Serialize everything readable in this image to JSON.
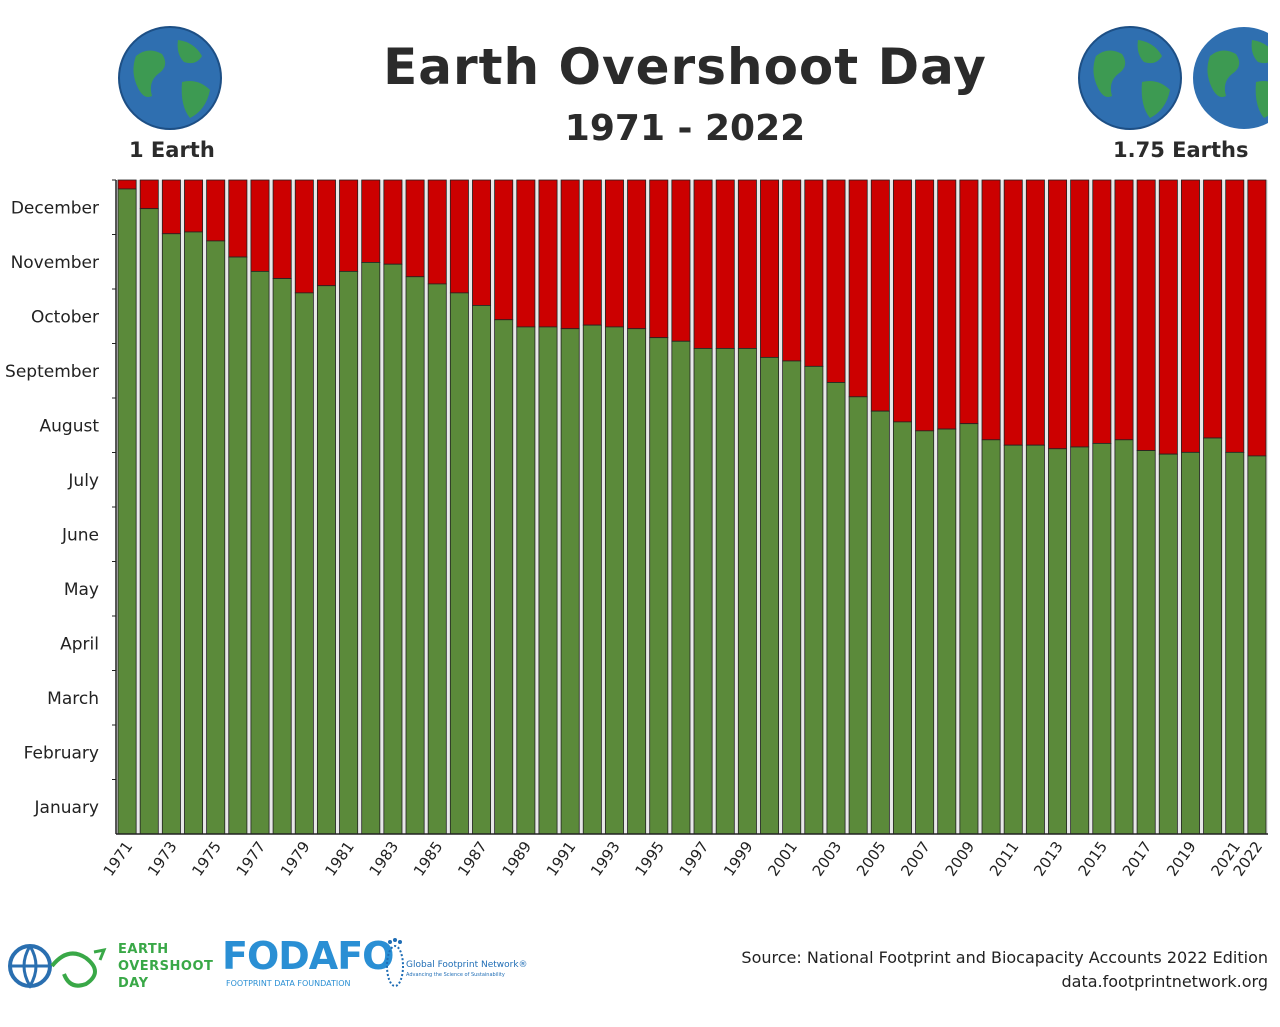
{
  "header": {
    "title": "Earth Overshoot Day",
    "subtitle": "1971 - 2022",
    "left_label": "1 Earth",
    "right_label": "1.75 Earths"
  },
  "footer": {
    "source_line1": "Source: National Footprint and Biocapacity Accounts 2022 Edition",
    "source_line2": "data.footprintnetwork.org",
    "logo_eod_line1": "EARTH",
    "logo_eod_line2": "OVERSHOOT",
    "logo_eod_line3": "DAY",
    "logo_fodafo": "FODAFO",
    "logo_fodafo_sub": "FOOTPRINT DATA FOUNDATION",
    "logo_gfn": "Global Footprint Network®",
    "logo_gfn_sub": "Advancing the Science of Sustainability"
  },
  "colors": {
    "within_budget": "#5b8a3a",
    "overshoot": "#cc0000",
    "ocean": "#2f6fb0",
    "land": "#3d9a52"
  },
  "icons": [
    "globe-icon",
    "globe-icon",
    "globe-icon"
  ],
  "chart_data": {
    "type": "bar",
    "stacked": true,
    "title": "Earth Overshoot Day",
    "subtitle": "1971 - 2022",
    "y_categories": [
      "January",
      "February",
      "March",
      "April",
      "May",
      "June",
      "July",
      "August",
      "September",
      "October",
      "November",
      "December"
    ],
    "x_tick_labels": [
      "1971",
      "1973",
      "1975",
      "1977",
      "1979",
      "1981",
      "1983",
      "1985",
      "1987",
      "1989",
      "1991",
      "1993",
      "1995",
      "1997",
      "1999",
      "2001",
      "2003",
      "2005",
      "2007",
      "2009",
      "2011",
      "2013",
      "2015",
      "2017",
      "2019",
      "2021",
      "2022"
    ],
    "years": [
      1971,
      1972,
      1973,
      1974,
      1975,
      1976,
      1977,
      1978,
      1979,
      1980,
      1981,
      1982,
      1983,
      1984,
      1985,
      1986,
      1987,
      1988,
      1989,
      1990,
      1991,
      1992,
      1993,
      1994,
      1995,
      1996,
      1997,
      1998,
      1999,
      2000,
      2001,
      2002,
      2003,
      2004,
      2005,
      2006,
      2007,
      2008,
      2009,
      2010,
      2011,
      2012,
      2013,
      2014,
      2015,
      2016,
      2017,
      2018,
      2019,
      2020,
      2021,
      2022
    ],
    "overshoot_day_of_year": [
      360,
      349,
      335,
      336,
      331,
      322,
      314,
      310,
      302,
      306,
      314,
      319,
      318,
      311,
      307,
      302,
      295,
      287,
      283,
      283,
      282,
      284,
      283,
      282,
      277,
      275,
      271,
      271,
      271,
      266,
      264,
      261,
      252,
      244,
      236,
      230,
      225,
      226,
      229,
      220,
      217,
      217,
      215,
      216,
      218,
      220,
      214,
      212,
      213,
      221,
      213,
      211
    ],
    "series": [
      {
        "name": "",
        "color": "#5b8a3a"
      },
      {
        "name": "",
        "color": "#cc0000"
      }
    ],
    "y_range": [
      0,
      365
    ],
    "grid": false,
    "legend": "none"
  }
}
